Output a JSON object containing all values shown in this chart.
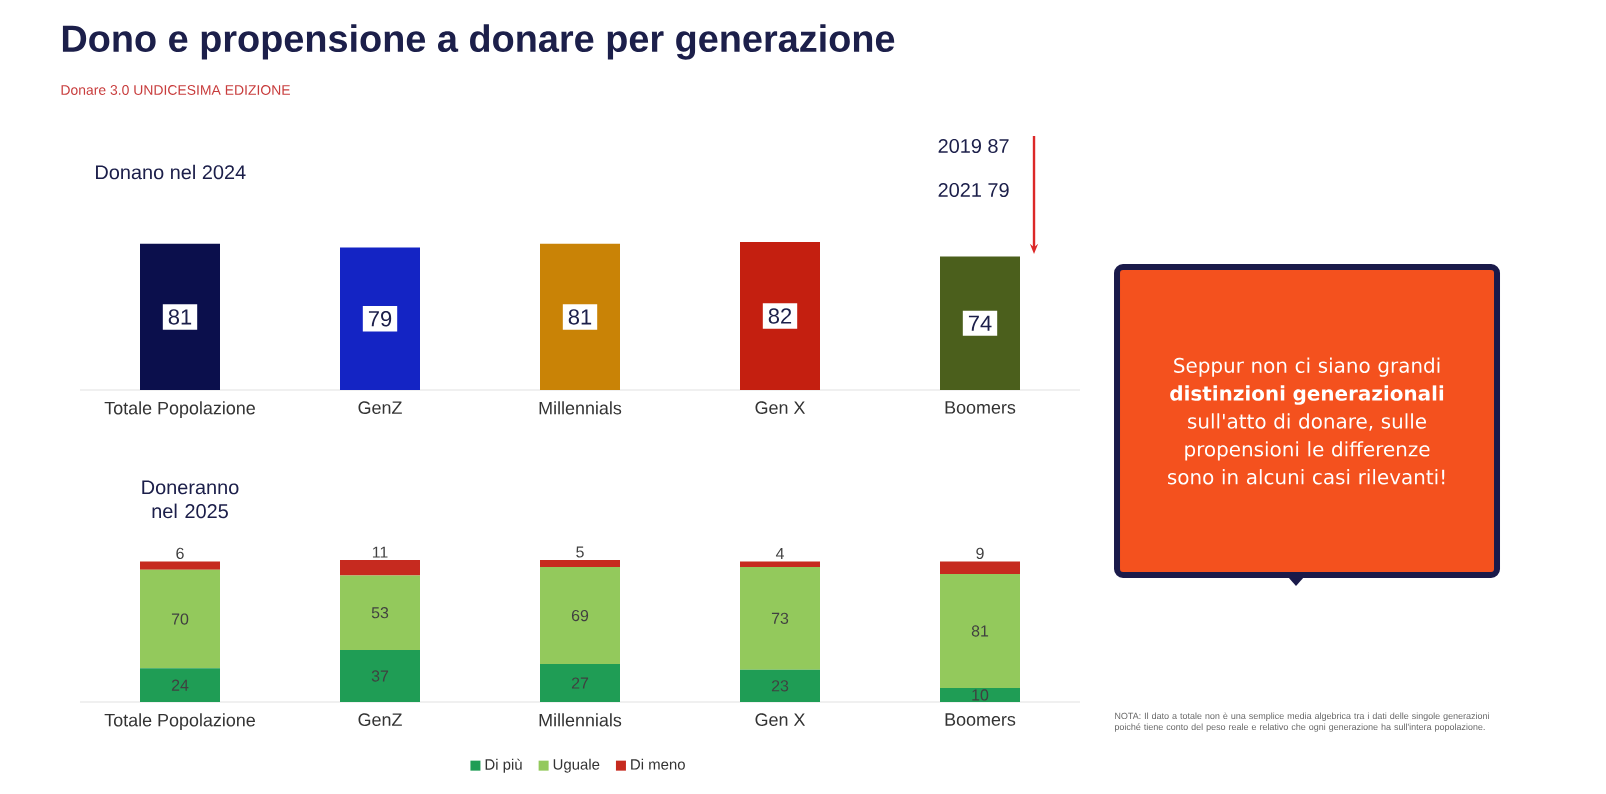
{
  "chart_data": [
    {
      "type": "bar",
      "title": "Dono e propensione a donare per generazione",
      "subtitle": "Donare 3.0 UNDICESIMA EDIZIONE",
      "categories": [
        "Totale Popolazione",
        "GenZ",
        "Millennials",
        "Gen X",
        "Boomers"
      ],
      "values": [
        81,
        79,
        81,
        82,
        74
      ],
      "colors": [
        "#0b0f4c",
        "#1424c4",
        "#c98306",
        "#c41f10",
        "#4b5f1c"
      ],
      "data_labels": true,
      "annotations": [
        "Donano nel 2024",
        "2019 87",
        "2021 79",
        "Seppur non ci siano grandi **distinzioni generazionali** sull'atto di donare, sulle propensioni le differenze sono in alcuni casi rilevanti!"
      ]
    },
    {
      "type": "bar",
      "stacked": true,
      "title": "Doneranno nel 2025",
      "categories": [
        "Totale Popolazione",
        "GenZ",
        "Millennials",
        "Gen X",
        "Boomers"
      ],
      "series": [
        {
          "name": "Di più",
          "color": "#1f9d55",
          "values": [
            24,
            37,
            27,
            23,
            10
          ]
        },
        {
          "name": "Uguale",
          "color": "#93c95c",
          "values": [
            70,
            53,
            69,
            73,
            81
          ]
        },
        {
          "name": "Di meno",
          "color": "#c62a1f",
          "values": [
            6,
            11,
            5,
            4,
            9
          ]
        }
      ],
      "data_labels": true,
      "legend": "bottom",
      "annotations": [
        "NOTA: Il dato a totale non è una semplice media algebrica tra i dati delle singole generazioni poiché tiene conto del peso reale e relativo che ogni generazione ha sull'intera popolazione."
      ]
    }
  ]
}
